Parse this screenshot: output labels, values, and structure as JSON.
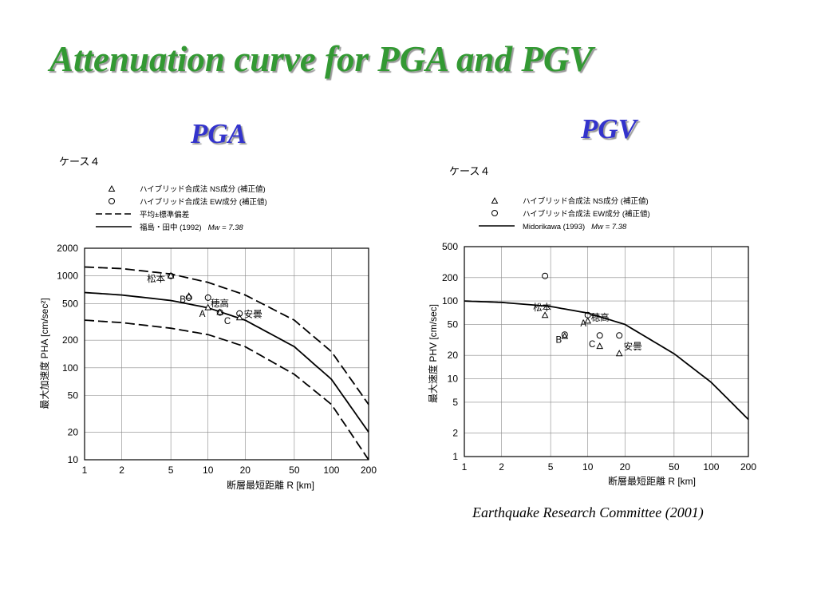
{
  "slide": {
    "title": "Attenuation curve for PGA and PGV",
    "pga_heading": "PGA",
    "pgv_heading": "PGV",
    "citation": "Earthquake Research Committee (2001)"
  },
  "chart_data": [
    {
      "id": "pga",
      "type": "scatter",
      "case_label": "ケース４",
      "xlabel": "断層最短距離 R [km]",
      "ylabel": "最大加速度 PHA [cm/sec²]",
      "xscale": "log",
      "yscale": "log",
      "xlim": [
        1,
        200
      ],
      "ylim": [
        10,
        2000
      ],
      "grid": true,
      "x_ticks": [
        1,
        2,
        5,
        10,
        20,
        50,
        100,
        200
      ],
      "y_ticks": [
        10,
        20,
        50,
        100,
        200,
        500,
        1000,
        2000
      ],
      "legend": [
        {
          "marker": "triangle",
          "text": "ハイブリッド合成法 NS成分 (補正値)"
        },
        {
          "marker": "circle",
          "text": "ハイブリッド合成法 EW成分 (補正値)"
        },
        {
          "marker": "dashed",
          "text": "平均±標準偏差"
        },
        {
          "marker": "solid",
          "text": "福島・田中 (1992)",
          "suffix": "Mw = 7.38"
        }
      ],
      "series": [
        {
          "name": "ハイブリッド合成法 NS成分 (補正値)",
          "marker": "triangle",
          "x": [
            5,
            7,
            10,
            12.5,
            18
          ],
          "y": [
            1000,
            600,
            450,
            400,
            350
          ]
        },
        {
          "name": "ハイブリッド合成法 EW成分 (補正値)",
          "marker": "circle",
          "x": [
            5,
            7,
            10,
            12.5,
            18
          ],
          "y": [
            1000,
            580,
            580,
            400,
            390
          ]
        }
      ],
      "curves": [
        {
          "name": "福島・田中 (1992)",
          "style": "solid",
          "x": [
            1,
            2,
            5,
            10,
            20,
            50,
            100,
            200
          ],
          "y": [
            660,
            620,
            540,
            450,
            330,
            170,
            75,
            20
          ]
        },
        {
          "name": "平均+標準偏差",
          "style": "dashed",
          "x": [
            1,
            2,
            5,
            10,
            20,
            50,
            100,
            200
          ],
          "y": [
            1250,
            1200,
            1050,
            850,
            620,
            330,
            150,
            40
          ]
        },
        {
          "name": "平均-標準偏差",
          "style": "dashed",
          "x": [
            1,
            2,
            5,
            10,
            20,
            50,
            100,
            200
          ],
          "y": [
            330,
            310,
            270,
            230,
            170,
            85,
            40,
            10
          ]
        }
      ],
      "annotations": [
        {
          "text": "松本",
          "x": 3.2,
          "y": 940
        },
        {
          "text": "B",
          "x": 5.9,
          "y": 555
        },
        {
          "text": "穂高",
          "x": 10.5,
          "y": 505
        },
        {
          "text": "A",
          "x": 8.5,
          "y": 390
        },
        {
          "text": "C",
          "x": 13.5,
          "y": 325
        },
        {
          "text": "安曇",
          "x": 19.5,
          "y": 385
        }
      ]
    },
    {
      "id": "pgv",
      "type": "scatter",
      "case_label": "ケース４",
      "xlabel": "断層最短距離 R [km]",
      "ylabel": "最大速度 PHV [cm/sec]",
      "xscale": "log",
      "yscale": "log",
      "xlim": [
        1,
        200
      ],
      "ylim": [
        1,
        500
      ],
      "grid": true,
      "x_ticks": [
        1,
        2,
        5,
        10,
        20,
        50,
        100,
        200
      ],
      "y_ticks": [
        1,
        2,
        5,
        10,
        20,
        50,
        100,
        200,
        500
      ],
      "legend": [
        {
          "marker": "triangle",
          "text": "ハイブリッド合成法 NS成分 (補正値)"
        },
        {
          "marker": "circle",
          "text": "ハイブリッド合成法 EW成分 (補正値)"
        },
        {
          "marker": "solid",
          "text": "Midorikawa (1993)",
          "suffix": "Mw = 7.38"
        }
      ],
      "series": [
        {
          "name": "ハイブリッド合成法 NS成分 (補正値)",
          "marker": "triangle",
          "x": [
            4.5,
            6.5,
            10,
            12.5,
            18
          ],
          "y": [
            65,
            35,
            55,
            26,
            21
          ]
        },
        {
          "name": "ハイブリッド合成法 EW成分 (補正値)",
          "marker": "circle",
          "x": [
            4.5,
            6.5,
            10,
            12.5,
            18
          ],
          "y": [
            210,
            37,
            66,
            36,
            36
          ]
        }
      ],
      "curves": [
        {
          "name": "Midorikawa (1993)",
          "style": "solid",
          "x": [
            1,
            2,
            5,
            10,
            20,
            50,
            100,
            200
          ],
          "y": [
            100,
            96,
            85,
            70,
            50,
            21,
            9,
            3
          ]
        }
      ],
      "annotations": [
        {
          "text": "松本",
          "x": 3.6,
          "y": 83
        },
        {
          "text": "A",
          "x": 8.7,
          "y": 52
        },
        {
          "text": "穂高",
          "x": 10.6,
          "y": 62
        },
        {
          "text": "B",
          "x": 5.5,
          "y": 32
        },
        {
          "text": "C",
          "x": 10.2,
          "y": 28
        },
        {
          "text": "安曇",
          "x": 19.5,
          "y": 26
        }
      ]
    }
  ]
}
